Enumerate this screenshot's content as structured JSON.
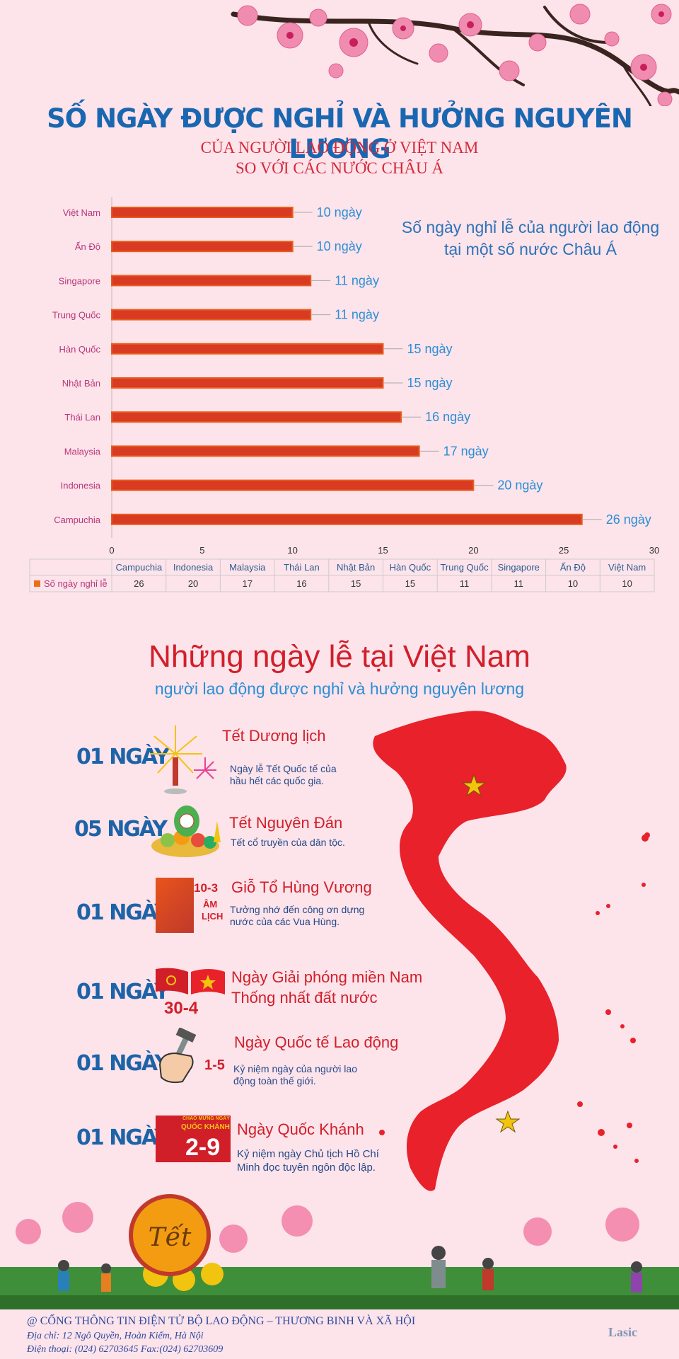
{
  "header": {
    "title": "SỐ NGÀY ĐƯỢC NGHỈ VÀ HƯỞNG NGUYÊN LƯƠNG",
    "subtitle_line1": "CỦA NGƯỜI LAO ĐỘNG Ở VIỆT NAM",
    "subtitle_line2": "SO VỚI CÁC NƯỚC CHÂU Á"
  },
  "chart_note_line1": "Số ngày nghỉ lễ của người lao động",
  "chart_note_line2": "tại một số nước Châu Á",
  "chart_data": {
    "type": "bar",
    "orientation": "horizontal",
    "categories": [
      "Việt Nam",
      "Ấn Độ",
      "Singapore",
      "Trung Quốc",
      "Hàn Quốc",
      "Nhật Bản",
      "Thái Lan",
      "Malaysia",
      "Indonesia",
      "Campuchia"
    ],
    "series": [
      {
        "name": "Số ngày nghỉ lễ",
        "values": [
          10,
          10,
          11,
          11,
          15,
          15,
          16,
          17,
          20,
          26
        ]
      }
    ],
    "data_labels": [
      "10 ngày",
      "10 ngày",
      "11 ngày",
      "11 ngày",
      "15 ngày",
      "15 ngày",
      "16 ngày",
      "17 ngày",
      "20 ngày",
      "26 ngày"
    ],
    "xlim": [
      0,
      30
    ],
    "x_ticks": [
      0,
      5,
      10,
      15,
      20,
      25,
      30
    ],
    "table_header": [
      "Campuchia",
      "Indonesia",
      "Malaysia",
      "Thái Lan",
      "Nhật Bản",
      "Hàn Quốc",
      "Trung Quốc",
      "Singapore",
      "Ấn Độ",
      "Việt Nam"
    ],
    "table_values": [
      "26",
      "20",
      "17",
      "16",
      "15",
      "15",
      "11",
      "11",
      "10",
      "10"
    ],
    "bar_color": "#d93a22",
    "legend_position": "data-table"
  },
  "holidays": {
    "title": "Những ngày lễ tại Việt Nam",
    "subtitle": "người lao động được nghỉ và hưởng nguyên lương",
    "items": [
      {
        "days": "01 NGÀY",
        "name": "Tết Dương lịch",
        "desc1": "Ngày lễ Tết Quốc tế của",
        "desc2": "hầu hết các quốc gia.",
        "icon": "fireworks-icon"
      },
      {
        "days": "05 NGÀY",
        "name": "Tết Nguyên Đán",
        "desc1": "Tết cổ truyền của dân tộc.",
        "desc2": "",
        "icon": "tet-fruit-tray-icon"
      },
      {
        "days": "01 NGÀY",
        "name": "Giỗ Tổ Hùng Vương",
        "desc1": "Tưởng nhớ đến công ơn dựng",
        "desc2": "nước của các Vua Hùng.",
        "icon": "hung-king-icon",
        "badge1": "10-3",
        "badge2": "ÂM",
        "badge3": "LỊCH"
      },
      {
        "days": "01 NGÀY",
        "name": "Ngày Giải phóng miền Nam",
        "name2": "Thống nhất đất nước",
        "desc1": "",
        "desc2": "",
        "icon": "flags-icon",
        "badge1": "30-4"
      },
      {
        "days": "01 NGÀY",
        "name": "Ngày Quốc tế Lao động",
        "desc1": "Kỷ niệm ngày của người lao",
        "desc2": "động toàn thế giới.",
        "icon": "hammer-hand-icon",
        "badge1": "1-5"
      },
      {
        "days": "01 NGÀY",
        "name": "Ngày Quốc Khánh",
        "desc1": "Kỷ niệm ngày Chủ tịch Hồ Chí",
        "desc2": "Minh đọc tuyên ngôn độc lập.",
        "icon": "national-day-icon",
        "badge1": "2-9",
        "badge2": "CHÀO MỪNG NGÀY",
        "badge3": "QUỐC KHÁNH"
      }
    ]
  },
  "tet_sign": "Tết",
  "map_color": "#e8212b",
  "footer": {
    "line1": "@ CỔNG THÔNG TIN ĐIỆN TỬ BỘ LAO ĐỘNG – THƯƠNG BINH VÀ XÃ HỘI",
    "line2": "Địa chỉ: 12 Ngô Quyền, Hoàn Kiếm, Hà Nội",
    "line3": "Điện thoại: (024) 62703645 Fax:(024) 62703609",
    "logo": "Lasic"
  }
}
